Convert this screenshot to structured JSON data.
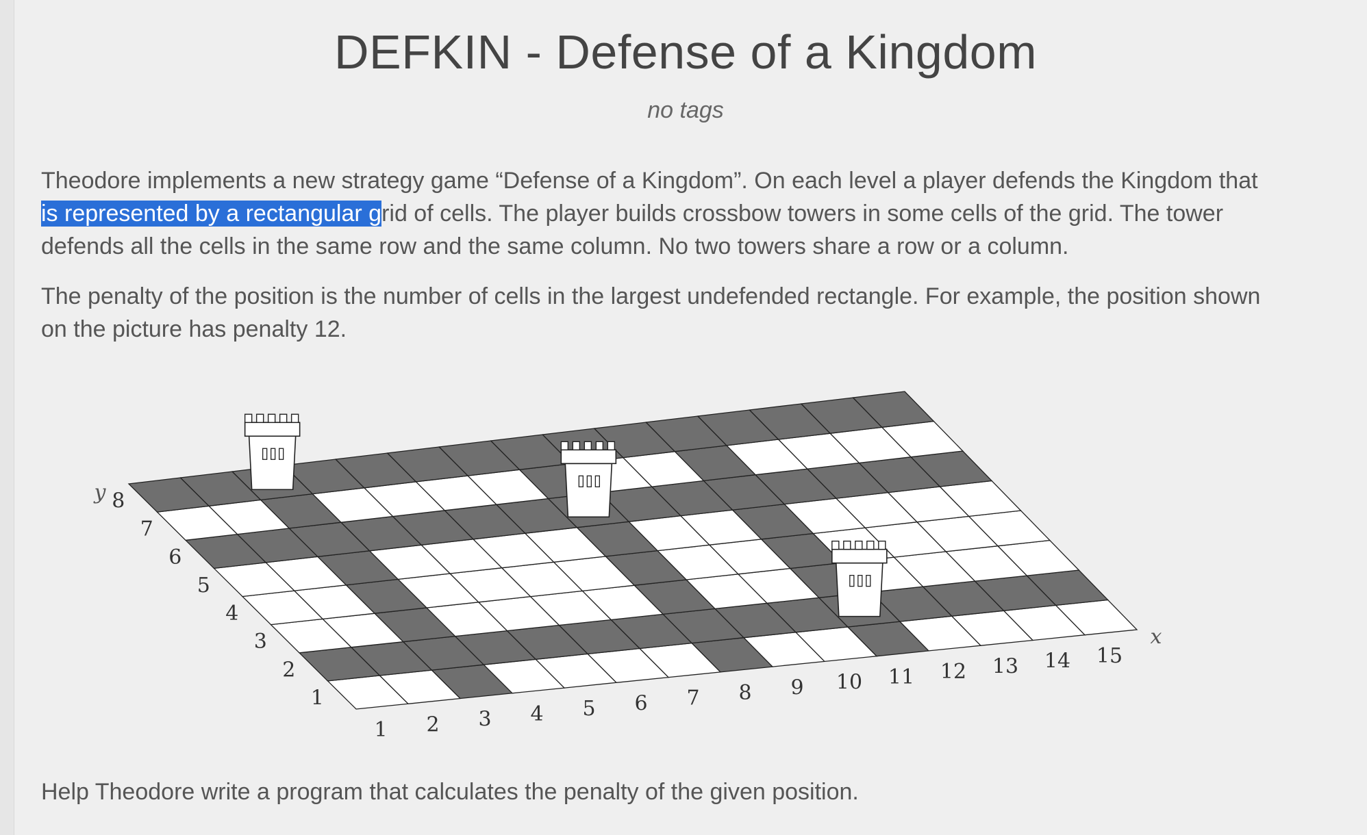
{
  "problem": {
    "title": "DEFKIN - Defense of a Kingdom",
    "tags": "no tags"
  },
  "paragraphs": {
    "p1_line1": "Theodore implements a new strategy game “Defense of a Kingdom”. On each level a player defends the Kingdom that",
    "p1_line2_selected": "is represented by a rectangular g",
    "p1_line2_rest": "rid of cells. The player builds crossbow towers in some cells of the grid. The tower",
    "p1_line3": "defends all the cells in the same row and the same column. No two towers share a row or a column.",
    "p2_line1": "The penalty of the position is the number of cells in the largest undefended rectangle. For example, the position shown",
    "p2_line2": "on the picture has penalty 12.",
    "p3": "Help Theodore write a program that calculates the penalty of the given position."
  },
  "figure": {
    "grid_width": 15,
    "grid_height": 8,
    "x_axis_label": "x",
    "y_axis_label": "y",
    "x_ticks": [
      "1",
      "2",
      "3",
      "4",
      "5",
      "6",
      "7",
      "8",
      "9",
      "10",
      "11",
      "12",
      "13",
      "14",
      "15"
    ],
    "y_ticks": [
      "1",
      "2",
      "3",
      "4",
      "5",
      "6",
      "7",
      "8"
    ],
    "towers": [
      {
        "x": 3,
        "y": 8
      },
      {
        "x": 11,
        "y": 2
      },
      {
        "x": 8,
        "y": 6
      }
    ],
    "colors": {
      "defended": "#6f6f6f",
      "undefended": "#ffffff",
      "grid_line": "#222222"
    }
  }
}
